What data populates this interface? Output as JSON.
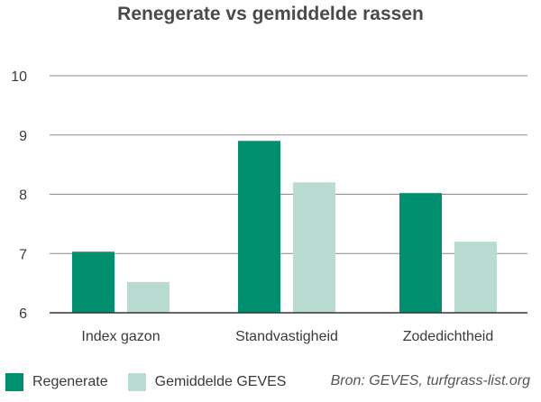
{
  "title": "Renegerate vs gemiddelde rassen",
  "source": "Bron: GEVES, turfgrass-list.org",
  "colors": {
    "regenerate": "#008f6f",
    "geves": "#b8dcd2",
    "grid": "#8c8c8c",
    "axis": "#333333"
  },
  "chart_data": {
    "type": "bar",
    "title": "Renegerate vs gemiddelde rassen",
    "xlabel": "",
    "ylabel": "",
    "ylim": [
      6,
      10
    ],
    "yticks": [
      6,
      7,
      8,
      9,
      10
    ],
    "grid": true,
    "legend_position": "bottom-left",
    "categories": [
      "Index gazon",
      "Standvastigheid",
      "Zodedichtheid"
    ],
    "series": [
      {
        "name": "Regenerate",
        "values": [
          7.03,
          8.9,
          8.02
        ]
      },
      {
        "name": "Gemiddelde GEVES",
        "values": [
          6.52,
          8.2,
          7.2
        ]
      }
    ]
  }
}
